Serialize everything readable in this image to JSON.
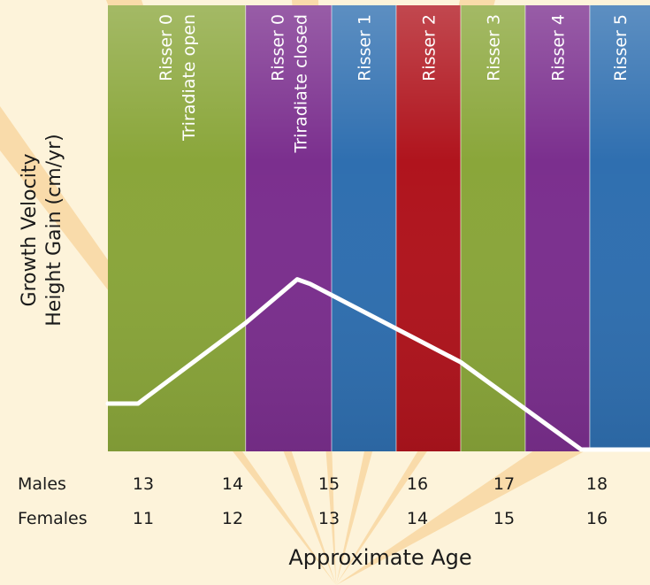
{
  "chart_data": {
    "type": "line",
    "title": "",
    "xlabel": "Approximate Age",
    "ylabel_lines": [
      "Growth Velocity",
      "Height Gain (cm/yr)"
    ],
    "age_rows": [
      {
        "name": "Males",
        "ticks": [
          13,
          14,
          15,
          16,
          17,
          18
        ]
      },
      {
        "name": "Females",
        "ticks": [
          11,
          12,
          13,
          14,
          15,
          16
        ]
      }
    ],
    "xlim": [
      12.4,
      18.7
    ],
    "ylim": [
      0,
      10
    ],
    "bands": [
      {
        "lines": [
          "Risser 0",
          "Triradiate open"
        ],
        "x_start": 12.4,
        "x_end": 14.0,
        "color": "#8aa63a"
      },
      {
        "lines": [
          "Risser 0",
          "Triradiate closed"
        ],
        "x_start": 14.0,
        "x_end": 15.0,
        "color": "#7b2f8e"
      },
      {
        "lines": [
          "Risser 1"
        ],
        "x_start": 15.0,
        "x_end": 15.75,
        "color": "#2f6fb0"
      },
      {
        "lines": [
          "Risser 2"
        ],
        "x_start": 15.75,
        "x_end": 16.5,
        "color": "#b0141d"
      },
      {
        "lines": [
          "Risser 3"
        ],
        "x_start": 16.5,
        "x_end": 17.25,
        "color": "#8aa63a"
      },
      {
        "lines": [
          "Risser 4"
        ],
        "x_start": 17.25,
        "x_end": 18.0,
        "color": "#7b2f8e"
      },
      {
        "lines": [
          "Risser 5"
        ],
        "x_start": 18.0,
        "x_end": 18.7,
        "color": "#2f6fb0"
      }
    ],
    "series": [
      {
        "x": [
          12.4,
          12.75,
          12.82,
          14.0,
          14.6,
          14.75,
          16.5,
          17.9,
          18.0,
          18.7
        ],
        "y": [
          2.0,
          2.0,
          2.2,
          5.5,
          7.4,
          7.2,
          3.8,
          0.0,
          0.0,
          0.0
        ],
        "color": "#ffffff"
      }
    ]
  }
}
